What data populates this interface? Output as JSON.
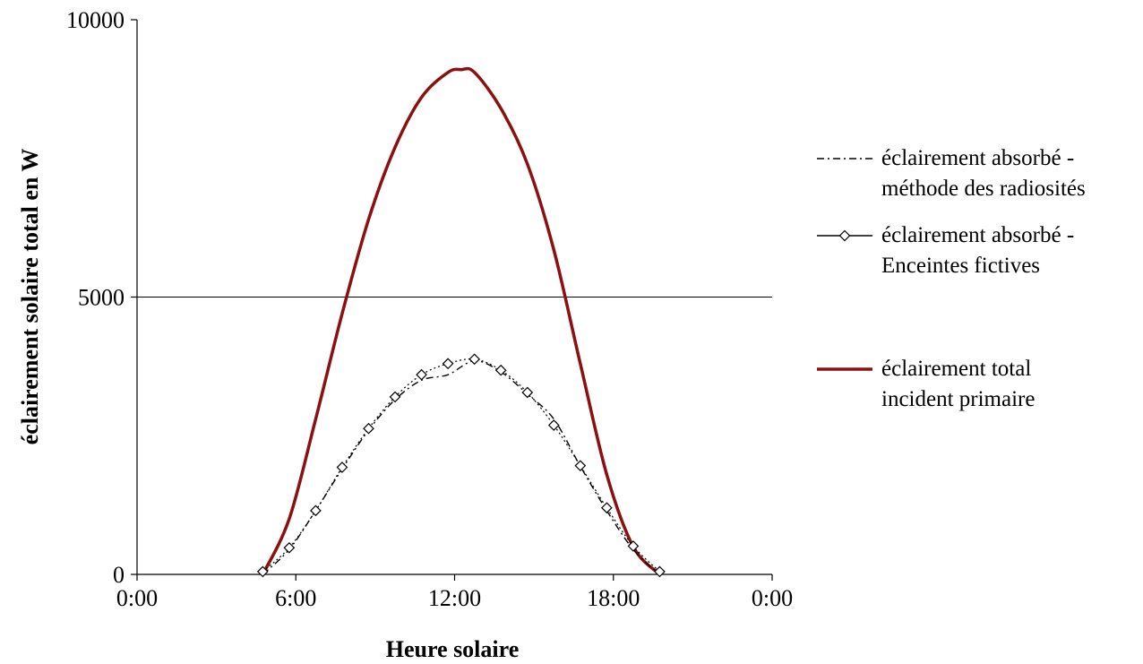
{
  "chart_data": {
    "type": "line",
    "title": "",
    "xlabel": "Heure solaire",
    "ylabel": "éclairement solaire total en W",
    "xlim": [
      "0:00",
      "0:00"
    ],
    "xlim_hours": [
      0,
      24
    ],
    "ylim": [
      0,
      10000
    ],
    "x_ticks": [
      {
        "label": "0:00",
        "hour": 0
      },
      {
        "label": "6:00",
        "hour": 6
      },
      {
        "label": "12:00",
        "hour": 12
      },
      {
        "label": "18:00",
        "hour": 18
      },
      {
        "label": "0:00",
        "hour": 24
      }
    ],
    "y_ticks": [
      {
        "label": "0",
        "value": 0
      },
      {
        "label": "5000",
        "value": 5000
      },
      {
        "label": "10000",
        "value": 10000
      }
    ],
    "grid": "horizontal at 5000",
    "legend_position": "right",
    "series": [
      {
        "name_lines": [
          "éclairement absorbé -",
          "méthode des radiosités"
        ],
        "style": "dash-dot",
        "color": "#000000",
        "x": [
          4.75,
          5.75,
          6.75,
          7.75,
          8.75,
          9.75,
          10.75,
          11.75,
          12.75,
          13.75,
          14.75,
          15.75,
          16.75,
          17.75,
          18.75,
          19.75
        ],
        "y": [
          0,
          450,
          1150,
          1900,
          2600,
          3150,
          3500,
          3600,
          3850,
          3650,
          3250,
          2800,
          1950,
          1150,
          450,
          0
        ]
      },
      {
        "name_lines": [
          "éclairement absorbé -",
          "Enceintes fictives"
        ],
        "style": "solid-diamond",
        "color": "#000000",
        "x": [
          4.75,
          5.75,
          6.75,
          7.75,
          8.75,
          9.75,
          10.75,
          11.75,
          12.75,
          13.75,
          14.75,
          15.75,
          16.75,
          17.75,
          18.75,
          19.75
        ],
        "y": [
          50,
          480,
          1150,
          1930,
          2630,
          3200,
          3600,
          3800,
          3880,
          3680,
          3280,
          2690,
          1960,
          1200,
          510,
          50
        ]
      },
      {
        "name_lines": [
          "éclairement total",
          "incident primaire"
        ],
        "style": "solid",
        "color": "#8b1010",
        "x": [
          4.75,
          5.75,
          6.75,
          7.75,
          8.75,
          9.75,
          10.75,
          11.75,
          12.25,
          12.75,
          13.75,
          14.75,
          15.75,
          16.75,
          17.75,
          18.75,
          19.75
        ],
        "y": [
          0,
          1000,
          2800,
          4700,
          6400,
          7700,
          8600,
          9050,
          9100,
          9050,
          8400,
          7400,
          5850,
          3800,
          1800,
          500,
          0
        ]
      }
    ]
  }
}
